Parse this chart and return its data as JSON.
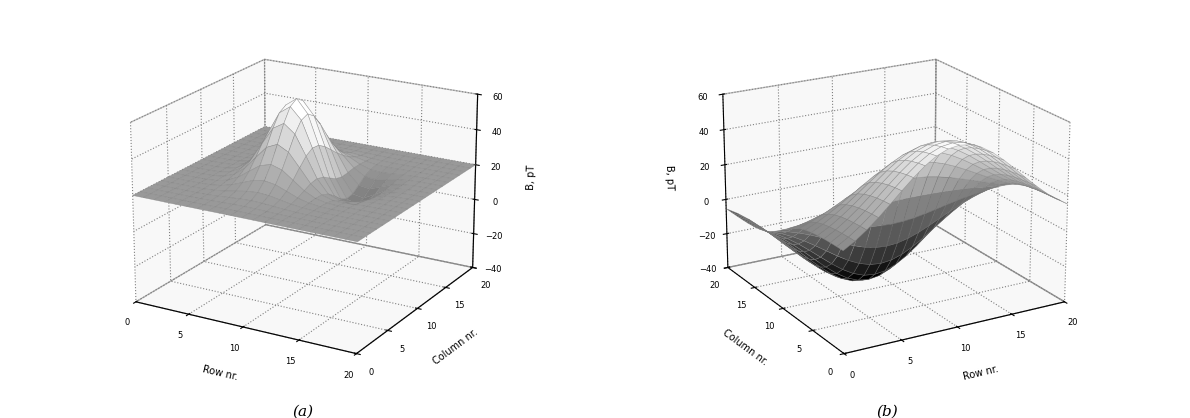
{
  "xlabel": "Row nr.",
  "ylabel": "Column nr.",
  "zlabel": "B, pT",
  "zlim": [
    -40,
    60
  ],
  "zticks": [
    -40,
    -20,
    0,
    20,
    40,
    60
  ],
  "xlim": [
    0,
    20
  ],
  "ylim": [
    0,
    20
  ],
  "xticks": [
    0,
    5,
    10,
    15,
    20
  ],
  "yticks": [
    0,
    5,
    10,
    15,
    20
  ],
  "label_a": "(a)",
  "label_b": "(b)",
  "background_color": "#ffffff",
  "elev_a": 20,
  "azim_a": -60,
  "elev_b": 20,
  "azim_b": -120,
  "n_points": 21
}
